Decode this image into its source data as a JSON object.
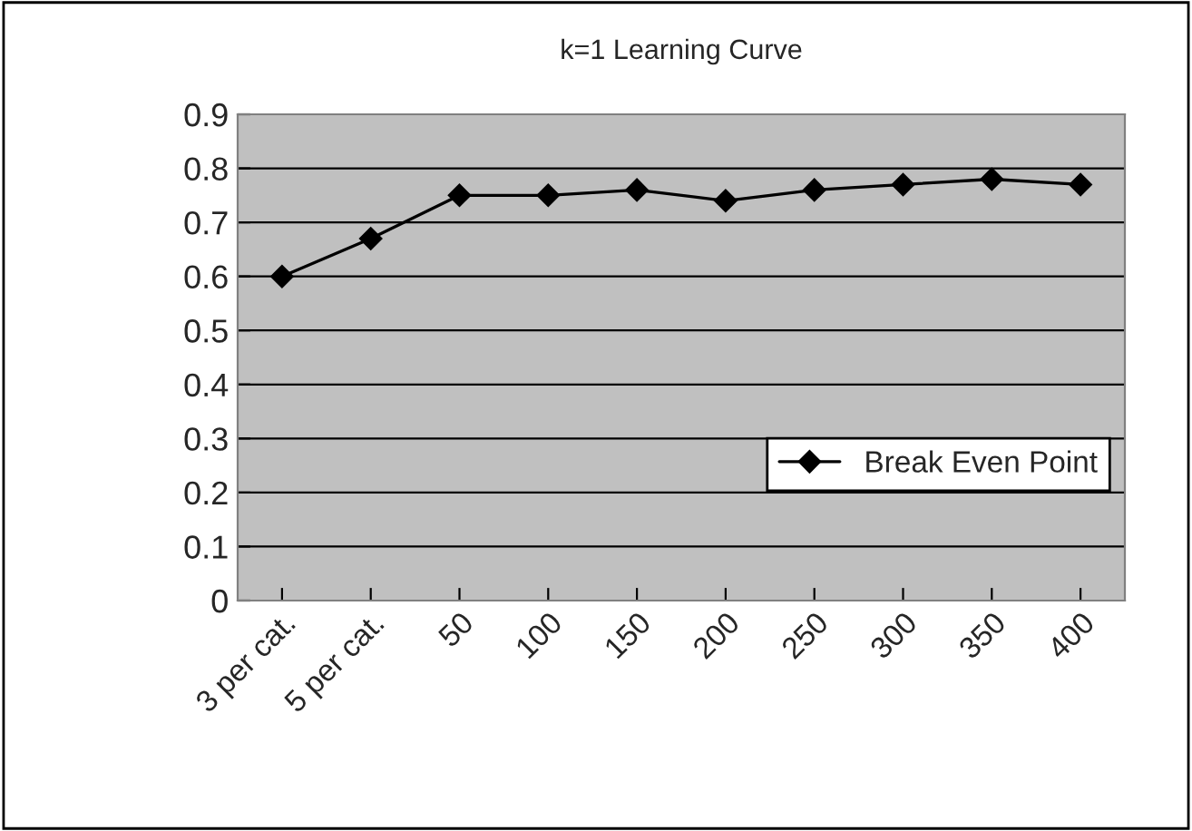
{
  "chart_data": {
    "type": "line",
    "title": "k=1 Learning Curve",
    "categories": [
      "3 per cat.",
      "5 per cat.",
      "50",
      "100",
      "150",
      "200",
      "250",
      "300",
      "350",
      "400"
    ],
    "series": [
      {
        "name": "Break Even Point",
        "color": "#000000",
        "values": [
          0.6,
          0.67,
          0.75,
          0.75,
          0.76,
          0.74,
          0.76,
          0.77,
          0.78,
          0.77
        ]
      }
    ],
    "ylim": [
      0,
      0.9
    ],
    "yticks": [
      0,
      0.1,
      0.2,
      0.3,
      0.4,
      0.5,
      0.6,
      0.7,
      0.8,
      0.9
    ],
    "grid": "y",
    "legend": "right",
    "marker": "diamond",
    "line_style": "solid"
  }
}
